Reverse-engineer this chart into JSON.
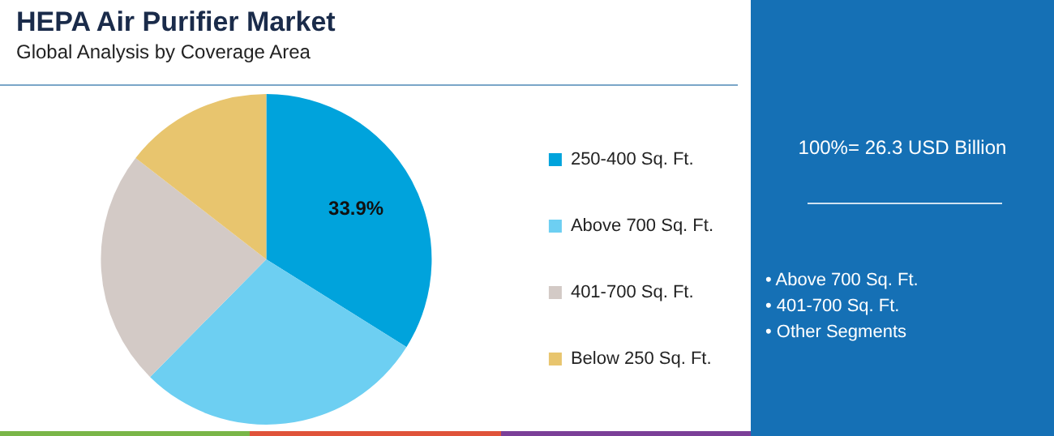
{
  "chart_data": {
    "type": "pie",
    "title": "HEPA Air Purifier Market",
    "subtitle": "Global Analysis by Coverage Area",
    "categories": [
      "250-400 Sq. Ft.",
      "Above 700 Sq. Ft.",
      "401-700 Sq. Ft.",
      "Below 250 Sq. Ft."
    ],
    "values": [
      33.9,
      28.5,
      23.1,
      14.5
    ],
    "colors": [
      "#00a3dc",
      "#6dcff2",
      "#d3cac6",
      "#e8c56e"
    ],
    "value_labels": [
      "33.9%",
      null,
      null,
      null
    ],
    "legend": "right",
    "annotations": [
      "100%= 26.3 USD Billion",
      "• Above 700 Sq. Ft.",
      "• 401-700 Sq. Ft.",
      "• Other Segments"
    ]
  }
}
